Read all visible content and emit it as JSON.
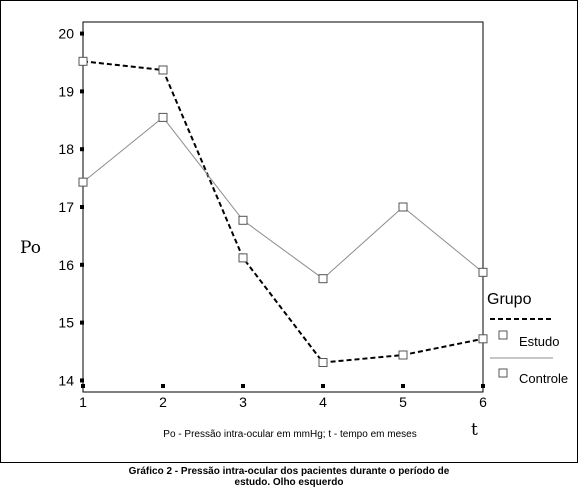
{
  "chart_data": {
    "type": "line",
    "x": [
      1,
      2,
      3,
      4,
      5,
      6
    ],
    "xlim": [
      1,
      6
    ],
    "ylim": [
      13.8,
      20.2
    ],
    "y_ticks": [
      14,
      15,
      16,
      17,
      18,
      19,
      20
    ],
    "ylabel": "Po",
    "xlabel": "t",
    "note": "Po - Pressão intra-ocular em mmHg; t - tempo em meses",
    "legend": {
      "title": "Grupo",
      "position": "right"
    },
    "series": [
      {
        "name": "Estudo",
        "style": "dashed",
        "color": "#000000",
        "values": [
          19.52,
          19.37,
          16.12,
          14.31,
          14.44,
          14.72
        ]
      },
      {
        "name": "Controle",
        "style": "solid",
        "color": "#8c8c8c",
        "values": [
          17.43,
          18.55,
          16.77,
          15.76,
          17.0,
          15.87
        ]
      }
    ],
    "caption_line1": "Gráfico 2 - Pressão intra-ocular dos pacientes durante o período de",
    "caption_line2": "estudo. Olho esquerdo"
  }
}
